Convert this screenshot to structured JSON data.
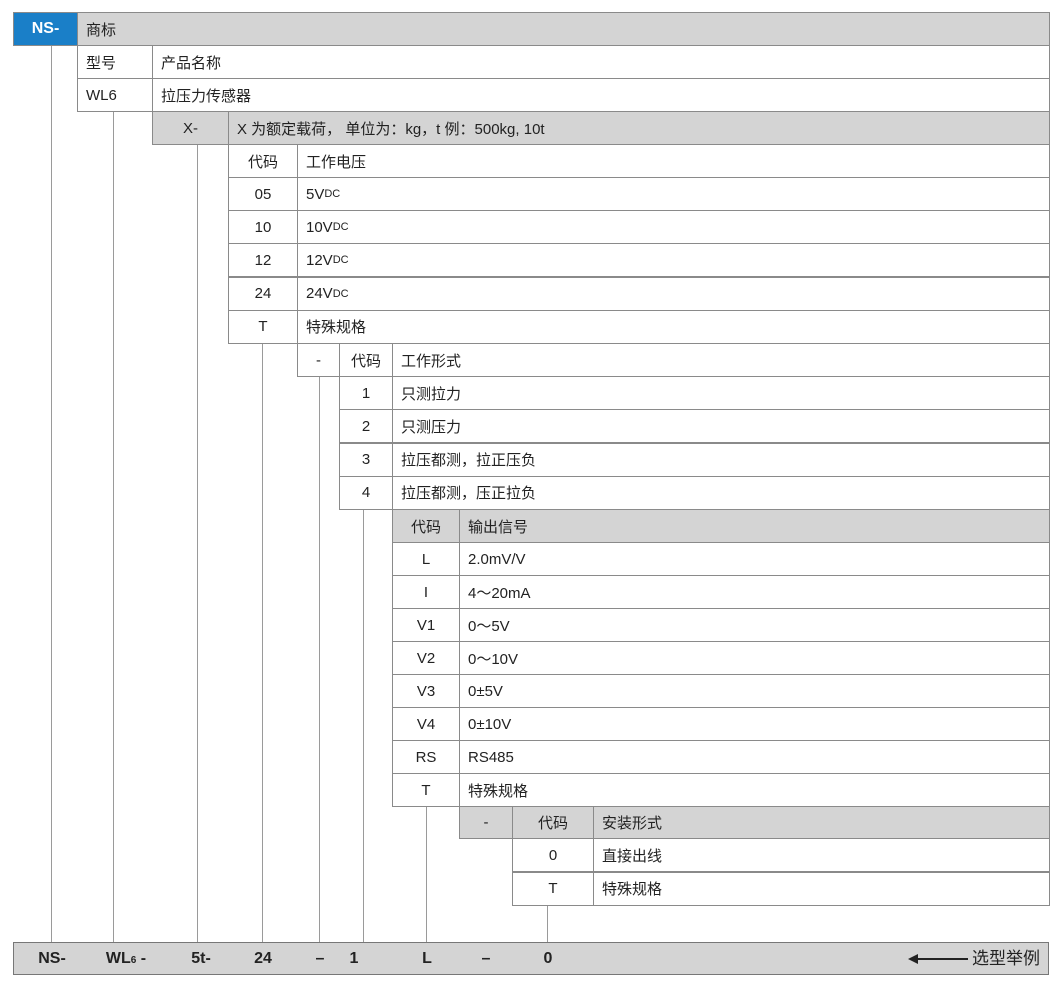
{
  "brand": {
    "code": "NS-",
    "label": "商标"
  },
  "model": {
    "header_code": "型号",
    "header_name": "产品名称",
    "code": "WL6",
    "name": "拉压力传感器"
  },
  "load": {
    "code": "X-",
    "desc": "X 为额定载荷， 单位为：kg，t 例：500kg, 10t"
  },
  "voltage": {
    "header_code": "代码",
    "header_name": "工作电压",
    "rows": [
      {
        "code": "05",
        "value": "5V",
        "unit": "DC"
      },
      {
        "code": "10",
        "value": "10V",
        "unit": "DC"
      },
      {
        "code": "12",
        "value": "12V",
        "unit": "DC"
      },
      {
        "code": "24",
        "value": "24V",
        "unit": "DC"
      },
      {
        "code": "T",
        "value": "特殊规格",
        "unit": ""
      }
    ]
  },
  "work_form": {
    "sep": "-",
    "header_code": "代码",
    "header_name": "工作形式",
    "rows": [
      {
        "code": "1",
        "value": "只测拉力"
      },
      {
        "code": "2",
        "value": "只测压力"
      },
      {
        "code": "3",
        "value": "拉压都测，拉正压负"
      },
      {
        "code": "4",
        "value": "拉压都测，压正拉负"
      }
    ]
  },
  "output": {
    "header_code": "代码",
    "header_name": "输出信号",
    "rows": [
      {
        "code": "L",
        "value": "2.0mV/V"
      },
      {
        "code": "I",
        "value": "4～20mA"
      },
      {
        "code": "V1",
        "value": "0～5V"
      },
      {
        "code": "V2",
        "value": "0～10V"
      },
      {
        "code": "V3",
        "value": "0±5V"
      },
      {
        "code": "V4",
        "value": "0±10V"
      },
      {
        "code": "RS",
        "value": "RS485"
      },
      {
        "code": "T",
        "value": "特殊规格"
      }
    ]
  },
  "install": {
    "sep": "-",
    "header_code": "代码",
    "header_name": "安装形式",
    "rows": [
      {
        "code": "0",
        "value": "直接出线"
      },
      {
        "code": "T",
        "value": "特殊规格"
      }
    ]
  },
  "example": {
    "parts": [
      "NS-",
      "WL",
      "6",
      "-",
      "5t-",
      "24",
      "–",
      "1",
      "L",
      "–",
      "0"
    ],
    "label": "选型举例",
    "arrow_icon": "arrow-left-icon"
  },
  "colors": {
    "brand": "#1a7fc8",
    "header_gray": "#d4d4d4",
    "border": "#8a8a8a"
  }
}
